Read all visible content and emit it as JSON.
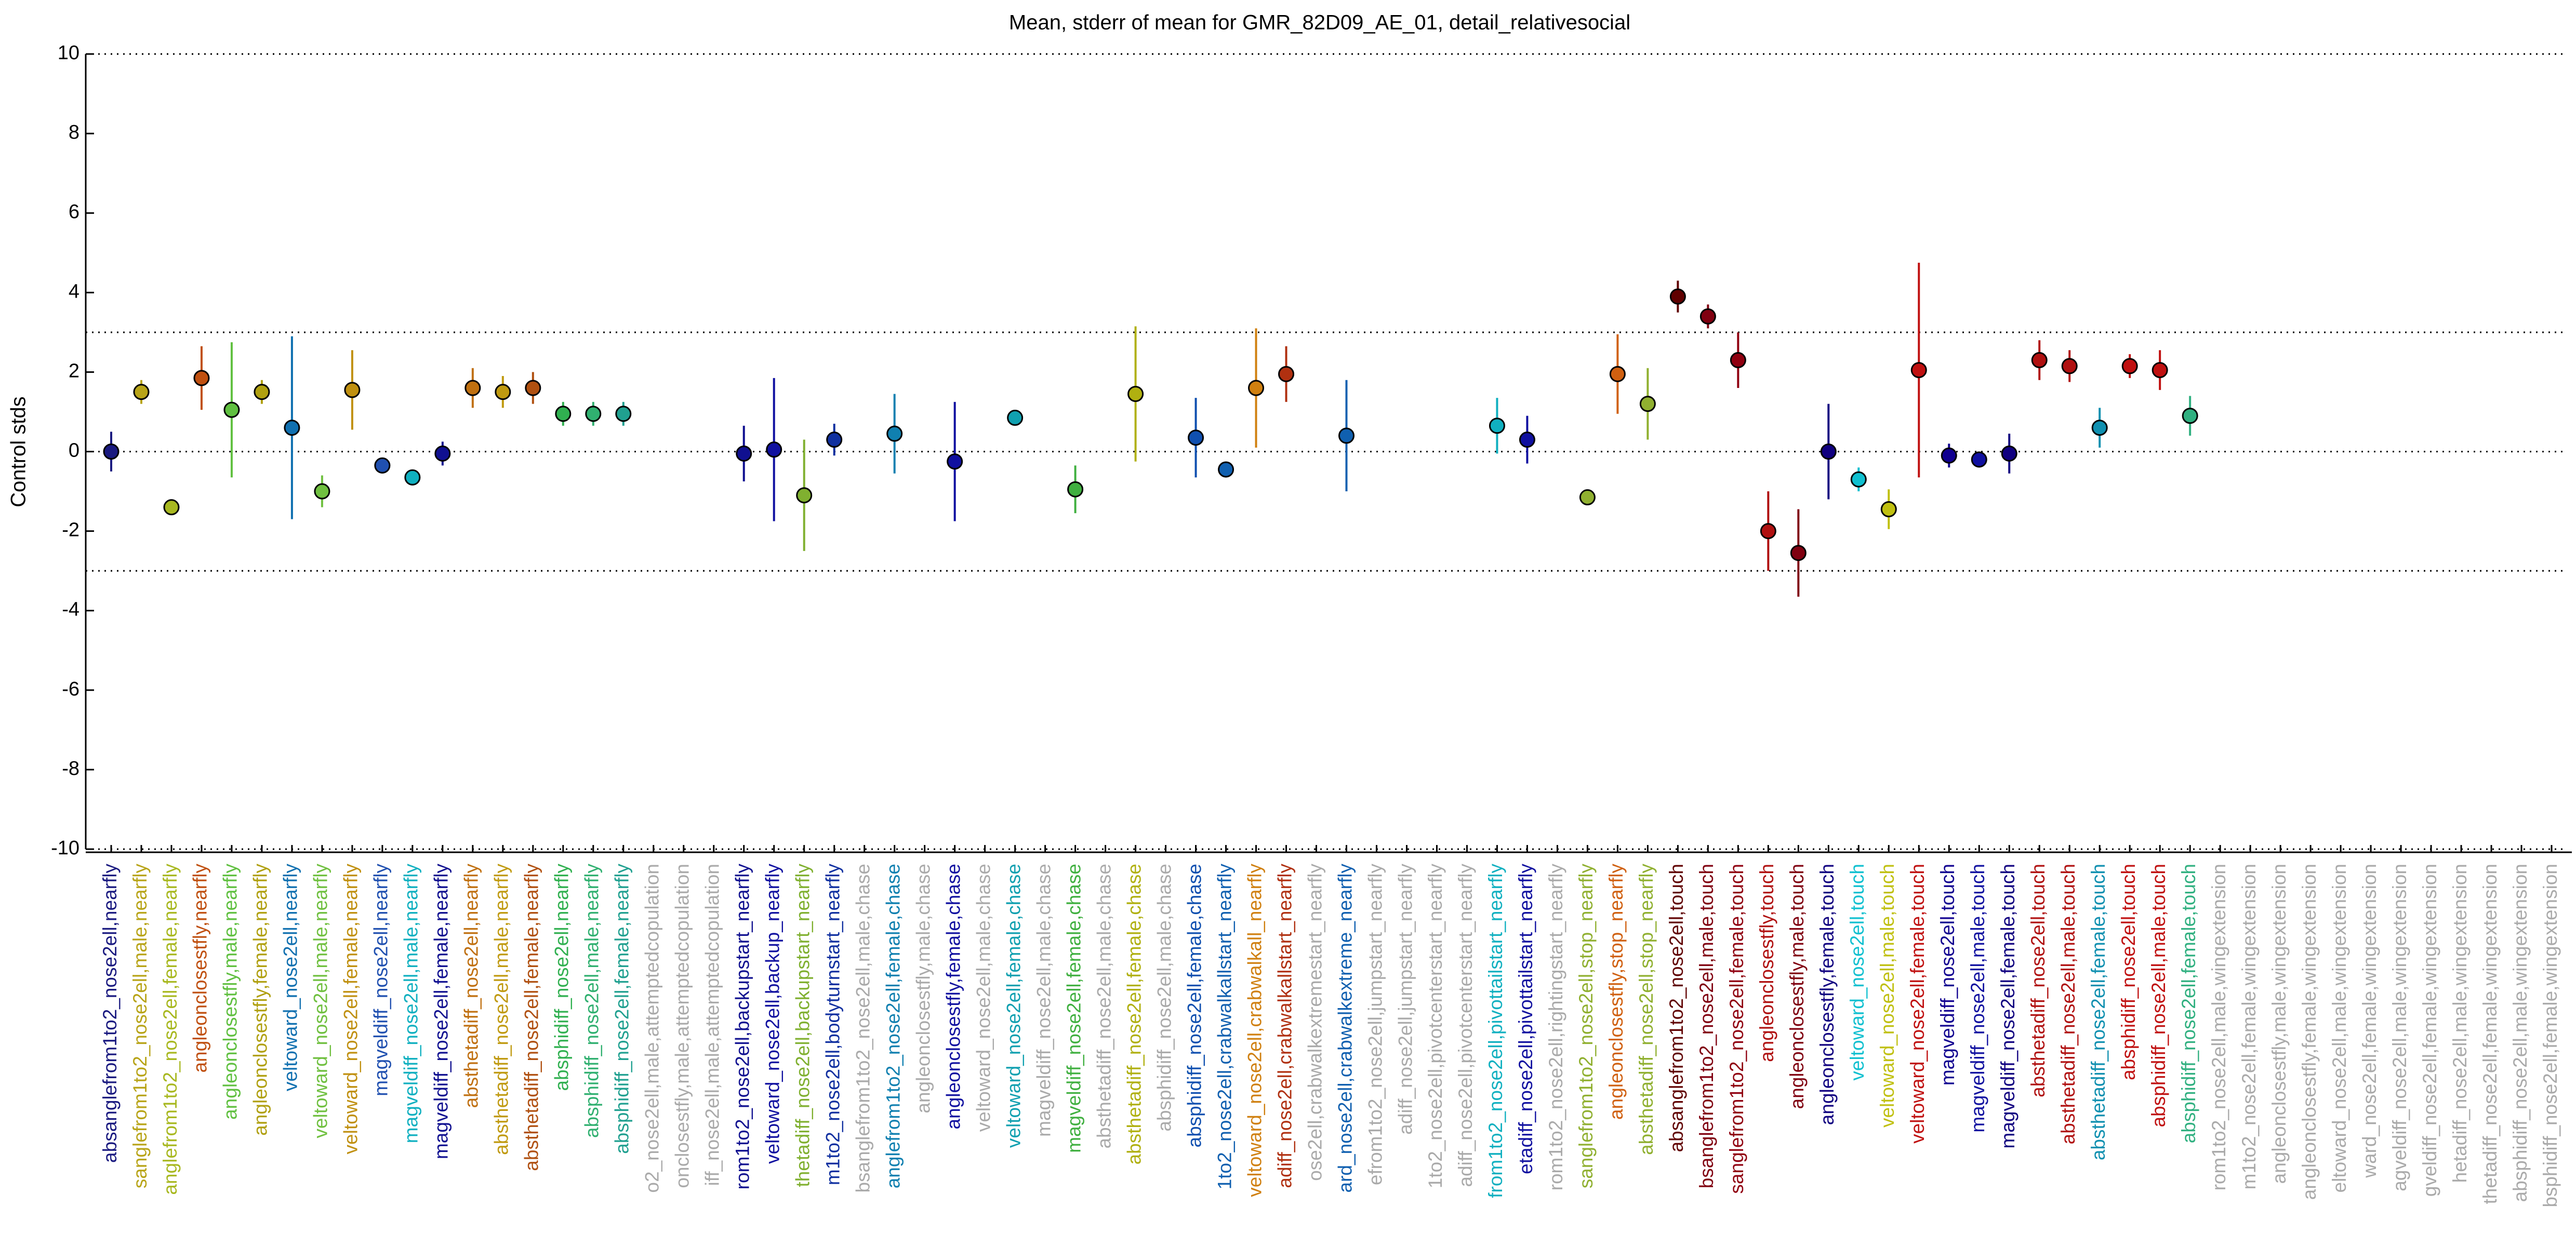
{
  "chart_data": {
    "type": "errorbar",
    "title": "Mean, stderr of mean for GMR_82D09_AE_01, detail_relativesocial",
    "ylabel": "Control stds",
    "ylim": [
      -10,
      10
    ],
    "yticks": [
      -10,
      -8,
      -6,
      -4,
      -2,
      0,
      2,
      4,
      6,
      8,
      10
    ],
    "reference_lines": [
      -10,
      -3,
      0,
      3,
      10
    ],
    "categories": [
      "absanglefrom1to2_nose2ell,nearfly",
      "sanglefrom1to2_nose2ell,male,nearfly",
      "anglefrom1to2_nose2ell,female,nearfly",
      "angleonclosestfly,nearfly",
      "angleonclosestfly,male,nearfly",
      "angleonclosestfly,female,nearfly",
      "veltoward_nose2ell,nearfly",
      "veltoward_nose2ell,male,nearfly",
      "veltoward_nose2ell,female,nearfly",
      "magveldiff_nose2ell,nearfly",
      "magveldiff_nose2ell,male,nearfly",
      "magveldiff_nose2ell,female,nearfly",
      "absthetadiff_nose2ell,nearfly",
      "absthetadiff_nose2ell,male,nearfly",
      "absthetadiff_nose2ell,female,nearfly",
      "absphidiff_nose2ell,nearfly",
      "absphidiff_nose2ell,male,nearfly",
      "absphidiff_nose2ell,female,nearfly",
      "o2_nose2ell,male,attemptedcopulation",
      "onclosestfly,male,attemptedcopulation",
      "iff_nose2ell,male,attemptedcopulation",
      "rom1to2_nose2ell,backupstart_nearfly",
      "veltoward_nose2ell,backup_nearfly",
      "thetadiff_nose2ell,backupstart_nearfly",
      "m1to2_nose2ell,bodyturnstart_nearfly",
      "bsanglefrom1to2_nose2ell,male,chase",
      "anglefrom1to2_nose2ell,female,chase",
      "angleonclosestfly,male,chase",
      "angleonclosestfly,female,chase",
      "veltoward_nose2ell,male,chase",
      "veltoward_nose2ell,female,chase",
      "magveldiff_nose2ell,male,chase",
      "magveldiff_nose2ell,female,chase",
      "absthetadiff_nose2ell,male,chase",
      "absthetadiff_nose2ell,female,chase",
      "absphidiff_nose2ell,male,chase",
      "absphidiff_nose2ell,female,chase",
      "1to2_nose2ell,crabwalkallstart_nearfly",
      "veltoward_nose2ell,crabwalkall_nearfly",
      "adiff_nose2ell,crabwalkallstart_nearfly",
      "ose2ell,crabwalkextremestart_nearfly",
      "ard_nose2ell,crabwalkextreme_nearfly",
      "efrom1to2_nose2ell,jumpstart_nearfly",
      "adiff_nose2ell,jumpstart_nearfly",
      "1to2_nose2ell,pivotcenterstart_nearfly",
      "adiff_nose2ell,pivotcenterstart_nearfly",
      "from1to2_nose2ell,pivottailstart_nearfly",
      "etadiff_nose2ell,pivottailstart_nearfly",
      "rom1to2_nose2ell,rightingstart_nearfly",
      "sanglefrom1to2_nose2ell,stop_nearfly",
      "angleonclosestfly,stop_nearfly",
      "absthetadiff_nose2ell,stop_nearfly",
      "absanglefrom1to2_nose2ell,touch",
      "bsanglefrom1to2_nose2ell,male,touch",
      "sanglefrom1to2_nose2ell,female,touch",
      "angleonclosestfly,touch",
      "angleonclosestfly,male,touch",
      "angleonclosestfly,female,touch",
      "veltoward_nose2ell,touch",
      "veltoward_nose2ell,male,touch",
      "veltoward_nose2ell,female,touch",
      "magveldiff_nose2ell,touch",
      "magveldiff_nose2ell,male,touch",
      "magveldiff_nose2ell,female,touch",
      "absthetadiff_nose2ell,touch",
      "absthetadiff_nose2ell,male,touch",
      "absthetadiff_nose2ell,female,touch",
      "absphidiff_nose2ell,touch",
      "absphidiff_nose2ell,male,touch",
      "absphidiff_nose2ell,female,touch",
      "rom1to2_nose2ell,male,wingextension",
      "m1to2_nose2ell,female,wingextension",
      "angleonclosestfly,male,wingextension",
      "angleonclosestfly,female,wingextension",
      "eltoward_nose2ell,male,wingextension",
      "ward_nose2ell,female,wingextension",
      "agveldiff_nose2ell,male,wingextension",
      "gveldiff_nose2ell,female,wingextension",
      "hetadiff_nose2ell,male,wingextension",
      "thetadiff_nose2ell,female,wingextension",
      "absphidiff_nose2ell,male,wingextension",
      "bsphidiff_nose2ell,female,wingextension"
    ],
    "values": [
      0.0,
      1.5,
      -1.4,
      1.85,
      1.05,
      1.5,
      0.6,
      -1.0,
      1.55,
      -0.35,
      -0.65,
      -0.05,
      1.6,
      1.5,
      1.6,
      0.95,
      0.95,
      0.95,
      null,
      null,
      null,
      -0.05,
      0.05,
      -1.1,
      0.3,
      null,
      0.45,
      null,
      -0.25,
      null,
      0.85,
      null,
      -0.95,
      null,
      1.45,
      null,
      0.35,
      -0.45,
      1.6,
      1.95,
      null,
      0.4,
      null,
      null,
      null,
      null,
      0.65,
      0.3,
      null,
      -1.15,
      1.95,
      1.2,
      3.9,
      3.4,
      2.3,
      -2.0,
      -2.55,
      0.0,
      -0.7,
      -1.45,
      2.05,
      -0.1,
      -0.2,
      -0.05,
      2.3,
      2.15,
      0.6,
      2.15,
      2.05,
      0.9,
      null,
      null,
      null,
      null,
      null,
      null,
      null,
      null,
      null,
      null,
      null,
      null
    ],
    "errors": [
      0.5,
      0.3,
      0.2,
      0.8,
      1.7,
      0.3,
      2.3,
      0.4,
      1.0,
      0.2,
      0.2,
      0.3,
      0.5,
      0.4,
      0.4,
      0.3,
      0.3,
      0.3,
      null,
      null,
      null,
      0.7,
      1.8,
      1.4,
      0.4,
      null,
      1.0,
      null,
      1.5,
      null,
      0.1,
      null,
      0.6,
      null,
      1.7,
      null,
      1.0,
      0.2,
      1.5,
      0.7,
      null,
      1.4,
      null,
      null,
      null,
      null,
      0.7,
      0.6,
      null,
      0.2,
      1.0,
      0.9,
      0.4,
      0.3,
      0.7,
      1.0,
      1.1,
      1.2,
      0.3,
      0.5,
      2.7,
      0.3,
      0.2,
      0.5,
      0.5,
      0.4,
      0.5,
      0.3,
      0.5,
      0.5,
      null,
      null,
      null,
      null,
      null,
      null,
      null,
      null,
      null,
      null,
      null,
      null
    ],
    "colors": [
      "#1a1a80",
      "#b8a418",
      "#a8b820",
      "#c05010",
      "#60c040",
      "#b0a010",
      "#1070b0",
      "#70c040",
      "#c09010",
      "#2050b0",
      "#10b0c0",
      "#101090",
      "#c07010",
      "#c09a10",
      "#b05010",
      "#30b050",
      "#30b070",
      "#20a090",
      "#aaaaaa",
      "#aaaaaa",
      "#aaaaaa",
      "#101090",
      "#1010a0",
      "#80b030",
      "#1030a0",
      "#aaaaaa",
      "#1080b0",
      "#aaaaaa",
      "#1010a0",
      "#aaaaaa",
      "#10a0b0",
      "#aaaaaa",
      "#40b040",
      "#aaaaaa",
      "#b0b010",
      "#aaaaaa",
      "#1050b0",
      "#1060b0",
      "#d08010",
      "#b03010",
      "#aaaaaa",
      "#1060b0",
      "#aaaaaa",
      "#aaaaaa",
      "#aaaaaa",
      "#aaaaaa",
      "#10b0c0",
      "#1010a0",
      "#aaaaaa",
      "#90b030",
      "#d06010",
      "#90b030",
      "#600000",
      "#800010",
      "#900010",
      "#b01010",
      "#800010",
      "#100080",
      "#10c0d0",
      "#c0c010",
      "#c01010",
      "#100090",
      "#1010a0",
      "#100080",
      "#b01010",
      "#b01010",
      "#1090b0",
      "#c01010",
      "#c01010",
      "#30b080",
      "#aaaaaa",
      "#aaaaaa",
      "#aaaaaa",
      "#aaaaaa",
      "#aaaaaa",
      "#aaaaaa",
      "#aaaaaa",
      "#aaaaaa",
      "#aaaaaa",
      "#aaaaaa",
      "#aaaaaa",
      "#aaaaaa"
    ]
  }
}
